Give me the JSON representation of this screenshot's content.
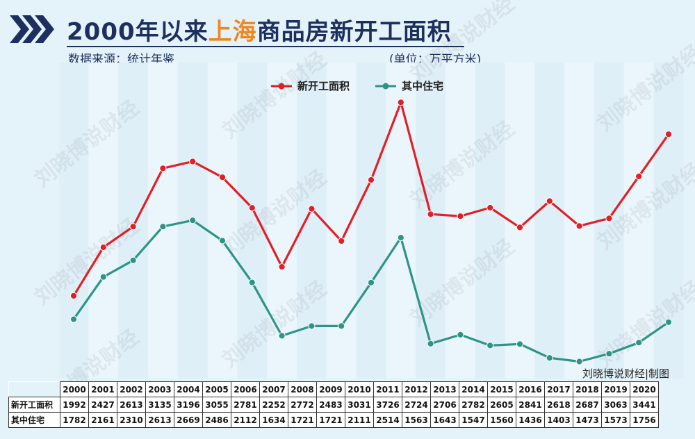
{
  "header": {
    "title_prefix": "2000年以来",
    "title_highlight": "上海",
    "title_suffix": "商品房新开工面积",
    "source": "数据来源：统计年鉴",
    "unit": "(单位：万平方米)"
  },
  "credit": "刘晓博说财经|制图",
  "watermark": "刘晓博说财经",
  "colors": {
    "series_new": "#e21f26",
    "series_res": "#2e9486",
    "title": "#1d2f5e",
    "highlight": "#f0871e",
    "background": "#e4f2fa"
  },
  "chart_data": {
    "type": "line",
    "title": "2000年以来上海商品房新开工面积",
    "x": [
      "2000",
      "2001",
      "2002",
      "2003",
      "2004",
      "2005",
      "2006",
      "2007",
      "2008",
      "2009",
      "2010",
      "2011",
      "2012",
      "2013",
      "2014",
      "2015",
      "2016",
      "2017",
      "2018",
      "2019",
      "2020"
    ],
    "series": [
      {
        "name": "新开工面积",
        "values": [
          1992,
          2427,
          2613,
          3135,
          3196,
          3055,
          2781,
          2252,
          2772,
          2483,
          3031,
          3726,
          2724,
          2706,
          2782,
          2605,
          2841,
          2618,
          2687,
          3063,
          3441
        ]
      },
      {
        "name": "其中住宅",
        "values": [
          1782,
          2161,
          2310,
          2613,
          2669,
          2486,
          2112,
          1634,
          1721,
          1721,
          2111,
          2514,
          1563,
          1643,
          1547,
          1560,
          1436,
          1403,
          1473,
          1573,
          1756
        ]
      }
    ],
    "legend_position": "top-center",
    "grid": false
  },
  "table": {
    "row_labels": [
      "新开工面积",
      "其中住宅"
    ]
  }
}
